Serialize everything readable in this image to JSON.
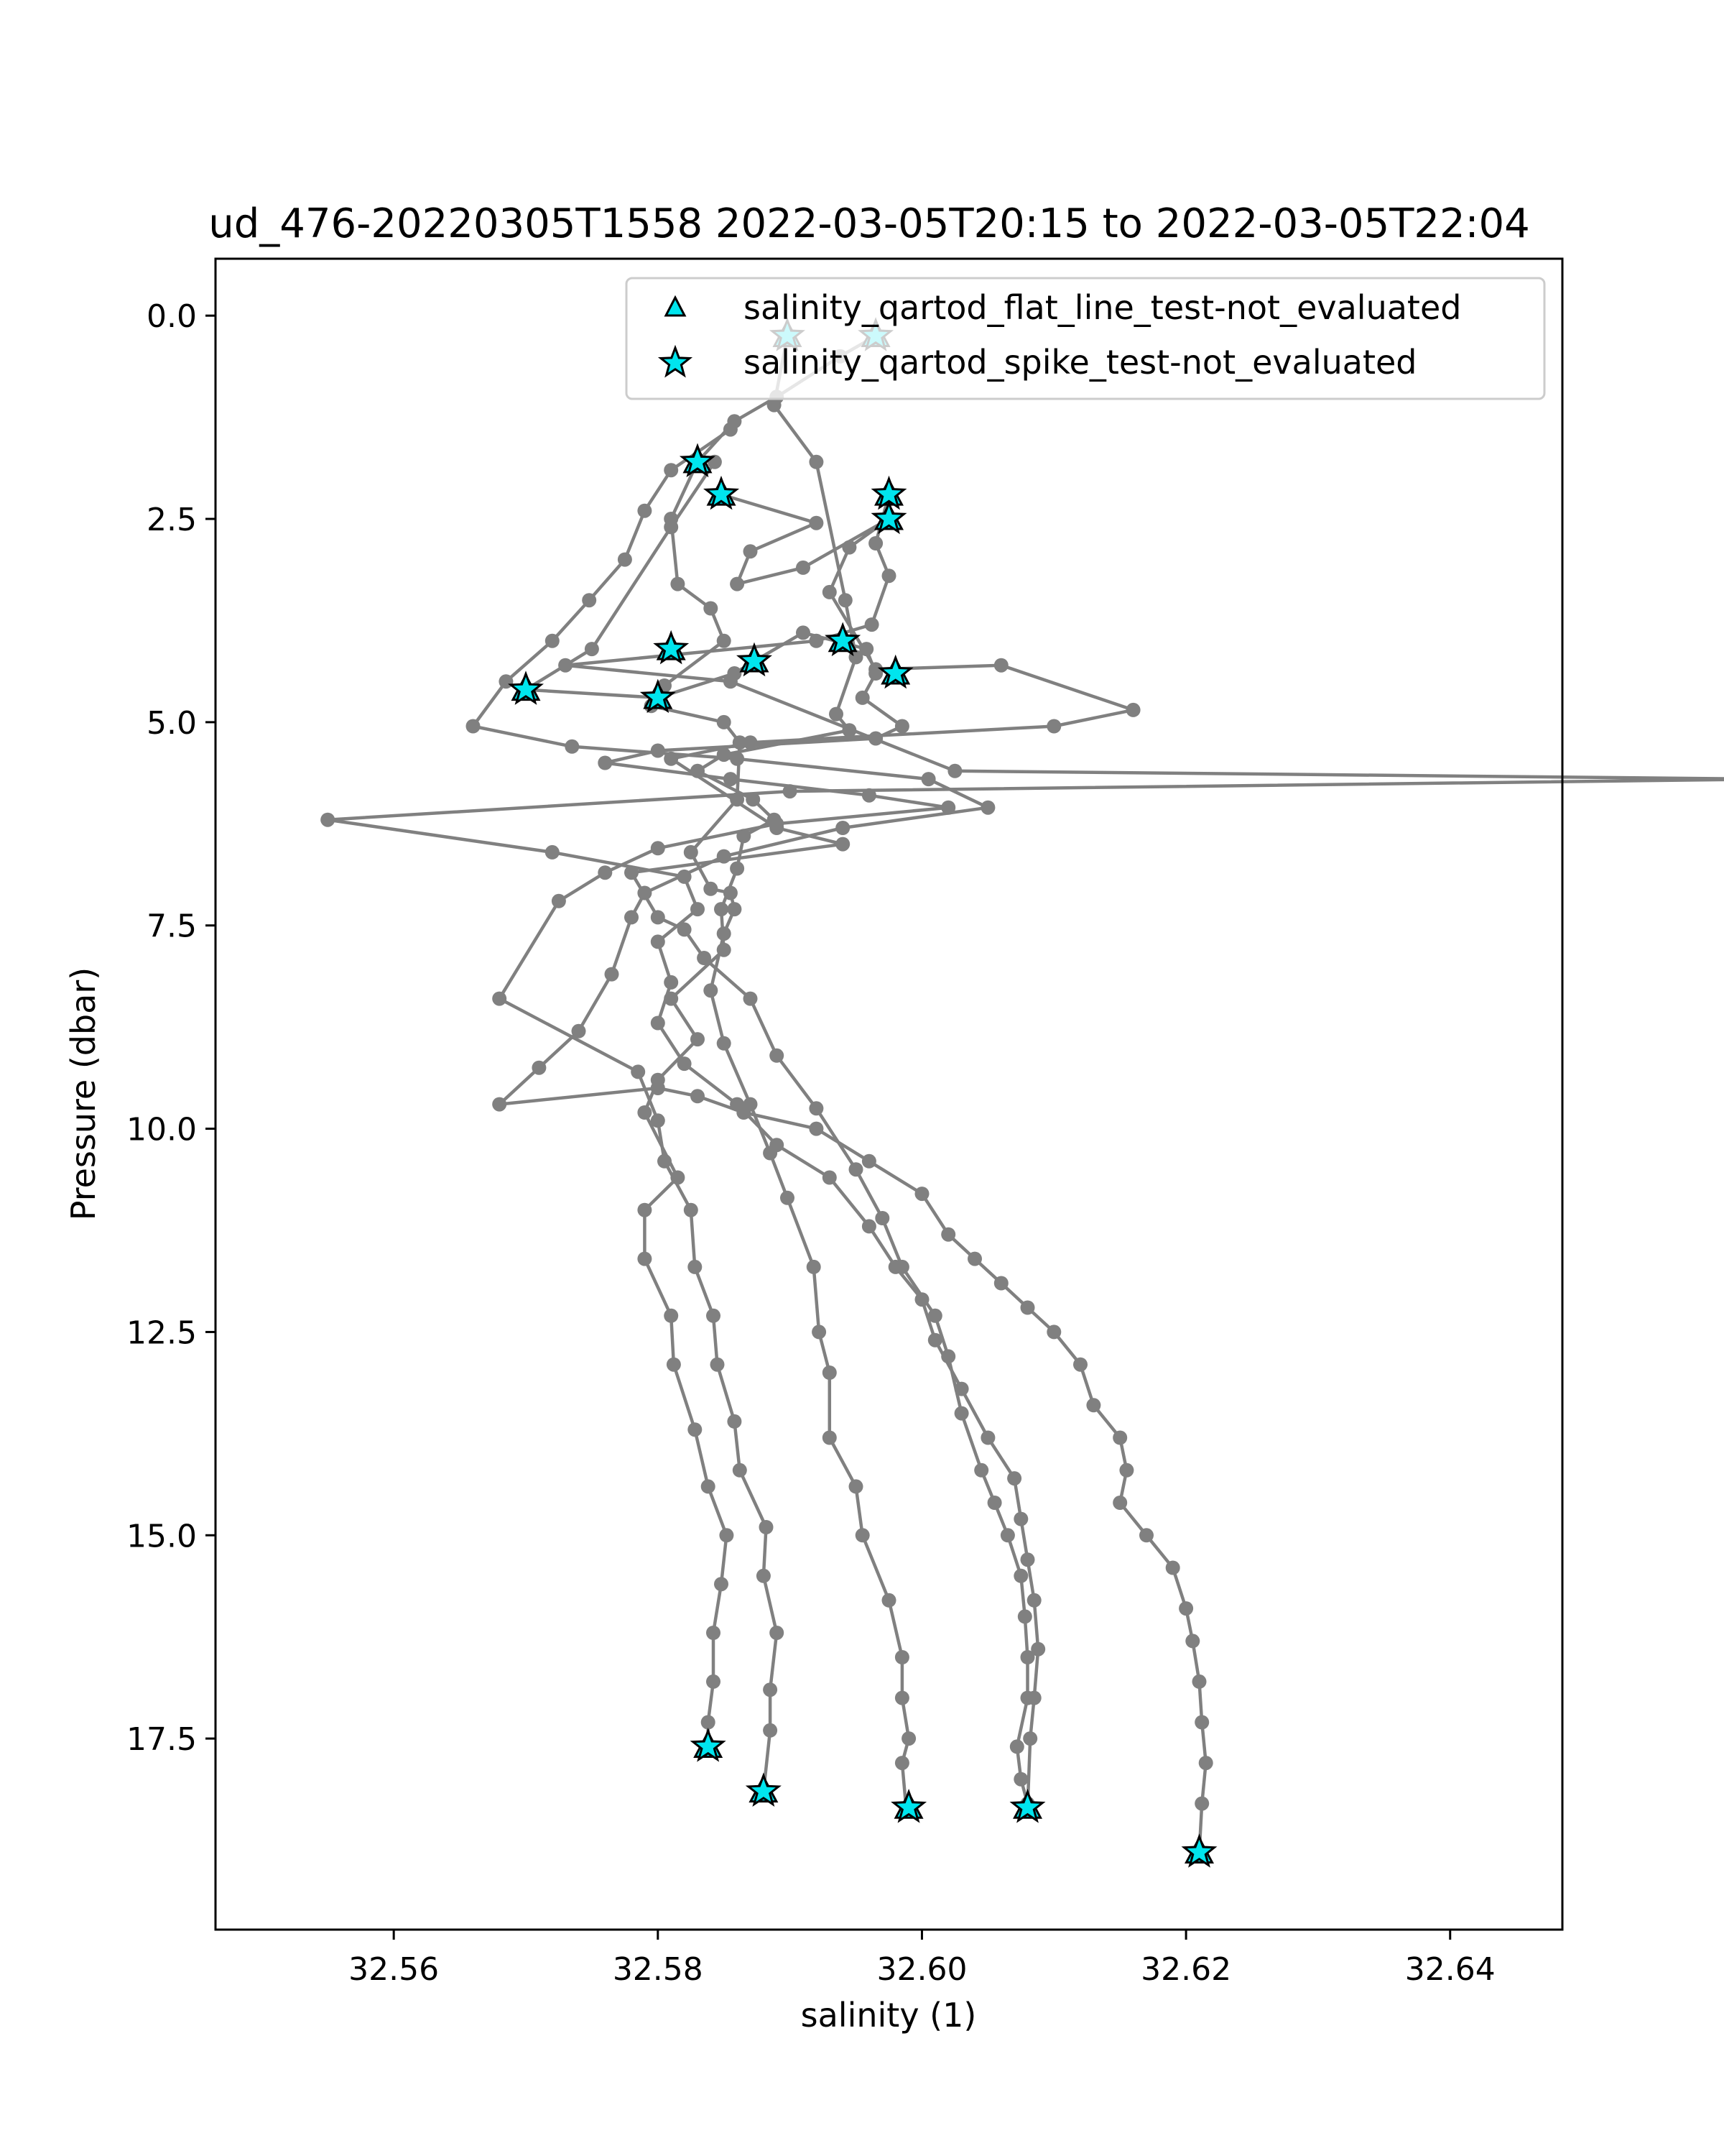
{
  "chart_data": {
    "type": "line",
    "title": "ud_476-20220305T1558 2022-03-05T20:15 to 2022-03-05T22:04",
    "xlabel": "salinity (1)",
    "ylabel": "Pressure (dbar)",
    "xlim": [
      32.5465,
      32.6485
    ],
    "ylim": [
      19.85,
      -0.7
    ],
    "y_inverted": true,
    "grid": false,
    "legend_placement": "top-right",
    "x_ticks": [
      "32.56",
      "32.58",
      "32.60",
      "32.62",
      "32.64"
    ],
    "x_tick_values": [
      32.56,
      32.58,
      32.6,
      32.62,
      32.64
    ],
    "y_ticks": [
      "0.0",
      "2.5",
      "5.0",
      "7.5",
      "10.0",
      "12.5",
      "15.0",
      "17.5"
    ],
    "y_tick_values": [
      0.0,
      2.5,
      5.0,
      7.5,
      10.0,
      12.5,
      15.0,
      17.5
    ],
    "line_color": "#808080",
    "marker_color": "#00e5ee",
    "legend": [
      {
        "label": "salinity_qartod_flat_line_test-not_evaluated",
        "marker": "triangle"
      },
      {
        "label": "salinity_qartod_spike_test-not_evaluated",
        "marker": "star"
      }
    ],
    "series": [
      {
        "profile": 1,
        "points": [
          [
            32.5898,
            0.25
          ],
          [
            32.5888,
            1.1
          ],
          [
            32.592,
            1.8
          ],
          [
            32.5942,
            3.5
          ],
          [
            32.595,
            4.2
          ],
          [
            32.5935,
            4.9
          ],
          [
            32.5945,
            5.1
          ],
          [
            32.585,
            5.4
          ],
          [
            32.583,
            5.6
          ],
          [
            32.5872,
            5.95
          ],
          [
            32.5888,
            6.2
          ],
          [
            32.5865,
            6.4
          ],
          [
            32.586,
            6.8
          ],
          [
            32.5848,
            7.3
          ],
          [
            32.585,
            7.8
          ],
          [
            32.581,
            8.4
          ],
          [
            32.583,
            8.9
          ],
          [
            32.58,
            9.4
          ],
          [
            32.579,
            9.8
          ],
          [
            32.5815,
            10.6
          ],
          [
            32.579,
            11.0
          ],
          [
            32.579,
            11.6
          ],
          [
            32.581,
            12.3
          ],
          [
            32.5812,
            12.9
          ],
          [
            32.5828,
            13.7
          ],
          [
            32.5838,
            14.4
          ],
          [
            32.5852,
            15.0
          ],
          [
            32.5848,
            15.6
          ],
          [
            32.5842,
            16.2
          ],
          [
            32.5842,
            16.8
          ],
          [
            32.5838,
            17.3
          ],
          [
            32.5838,
            17.6
          ]
        ]
      },
      {
        "profile": 2,
        "points": [
          [
            32.5965,
            0.25
          ],
          [
            32.5938,
            0.5
          ],
          [
            32.589,
            1.0
          ],
          [
            32.5858,
            1.3
          ],
          [
            32.583,
            1.8
          ],
          [
            32.581,
            2.5
          ],
          [
            32.5815,
            3.3
          ],
          [
            32.584,
            3.6
          ],
          [
            32.585,
            4.0
          ],
          [
            32.5805,
            4.55
          ],
          [
            32.5795,
            4.8
          ],
          [
            32.585,
            5.0
          ],
          [
            32.5862,
            5.25
          ],
          [
            32.586,
            5.95
          ],
          [
            32.5825,
            6.6
          ],
          [
            32.584,
            7.05
          ],
          [
            32.5855,
            7.1
          ],
          [
            32.5858,
            7.3
          ],
          [
            32.585,
            7.6
          ],
          [
            32.584,
            8.3
          ],
          [
            32.585,
            8.95
          ],
          [
            32.587,
            9.7
          ],
          [
            32.5885,
            10.3
          ],
          [
            32.5898,
            10.85
          ],
          [
            32.5918,
            11.7
          ],
          [
            32.5922,
            12.5
          ],
          [
            32.593,
            13.0
          ],
          [
            32.593,
            13.8
          ],
          [
            32.595,
            14.4
          ],
          [
            32.5955,
            15.0
          ],
          [
            32.5975,
            15.8
          ],
          [
            32.5985,
            16.5
          ],
          [
            32.5985,
            17.0
          ],
          [
            32.599,
            17.5
          ],
          [
            32.5985,
            17.8
          ],
          [
            32.5988,
            18.35
          ]
        ]
      },
      {
        "profile": 3,
        "points": [
          [
            32.5843,
            1.8
          ],
          [
            32.581,
            2.6
          ],
          [
            32.575,
            4.1
          ],
          [
            32.57,
            4.6
          ],
          [
            32.58,
            4.7
          ],
          [
            32.5858,
            4.4
          ],
          [
            32.5873,
            4.25
          ],
          [
            32.591,
            3.9
          ],
          [
            32.5958,
            4.1
          ],
          [
            32.5965,
            4.4
          ],
          [
            32.5955,
            4.7
          ],
          [
            32.5985,
            5.05
          ],
          [
            32.5965,
            5.2
          ],
          [
            32.58,
            5.35
          ],
          [
            32.576,
            5.5
          ],
          [
            32.5855,
            5.7
          ],
          [
            32.596,
            5.9
          ],
          [
            32.602,
            6.05
          ],
          [
            32.589,
            6.25
          ],
          [
            32.58,
            6.55
          ],
          [
            32.576,
            6.85
          ],
          [
            32.5725,
            7.2
          ],
          [
            32.568,
            8.4
          ],
          [
            32.5785,
            9.3
          ],
          [
            32.58,
            9.9
          ],
          [
            32.5805,
            10.4
          ],
          [
            32.5825,
            11.0
          ],
          [
            32.5828,
            11.7
          ],
          [
            32.5842,
            12.3
          ],
          [
            32.5845,
            12.9
          ],
          [
            32.5858,
            13.6
          ],
          [
            32.5862,
            14.2
          ],
          [
            32.5882,
            14.9
          ],
          [
            32.588,
            15.5
          ],
          [
            32.589,
            16.2
          ],
          [
            32.5885,
            16.9
          ],
          [
            32.5885,
            17.4
          ],
          [
            32.588,
            18.15
          ]
        ]
      },
      {
        "profile": 4,
        "points": [
          [
            32.5848,
            2.2
          ],
          [
            32.592,
            2.55
          ],
          [
            32.587,
            2.9
          ],
          [
            32.586,
            3.3
          ],
          [
            32.591,
            3.1
          ],
          [
            32.5975,
            2.5
          ],
          [
            32.5945,
            2.85
          ],
          [
            32.593,
            3.4
          ],
          [
            32.5965,
            4.35
          ],
          [
            32.606,
            4.3
          ],
          [
            32.616,
            4.85
          ],
          [
            32.61,
            5.05
          ],
          [
            32.587,
            5.25
          ],
          [
            32.581,
            5.45
          ],
          [
            32.589,
            6.3
          ],
          [
            32.594,
            6.5
          ],
          [
            32.578,
            6.85
          ],
          [
            32.58,
            7.4
          ],
          [
            32.582,
            7.55
          ],
          [
            32.5835,
            7.9
          ],
          [
            32.587,
            8.4
          ],
          [
            32.589,
            9.1
          ],
          [
            32.592,
            9.75
          ],
          [
            32.595,
            10.5
          ],
          [
            32.597,
            11.1
          ],
          [
            32.5985,
            11.7
          ],
          [
            32.601,
            12.3
          ],
          [
            32.602,
            12.8
          ],
          [
            32.603,
            13.5
          ],
          [
            32.6045,
            14.2
          ],
          [
            32.6055,
            14.6
          ],
          [
            32.6065,
            15.0
          ],
          [
            32.6075,
            15.5
          ],
          [
            32.6078,
            16.0
          ],
          [
            32.608,
            16.5
          ],
          [
            32.608,
            17.0
          ],
          [
            32.6072,
            17.6
          ],
          [
            32.6075,
            18.0
          ],
          [
            32.608,
            18.3
          ]
        ]
      },
      {
        "profile": 5,
        "points": [
          [
            32.5975,
            2.2
          ],
          [
            32.5965,
            2.8
          ],
          [
            32.5975,
            3.2
          ],
          [
            32.5962,
            3.8
          ],
          [
            32.592,
            4.0
          ],
          [
            32.573,
            4.3
          ],
          [
            32.5855,
            4.5
          ],
          [
            32.6025,
            5.6
          ],
          [
            32.664,
            5.7
          ],
          [
            32.59,
            5.85
          ],
          [
            32.555,
            6.2
          ],
          [
            32.572,
            6.6
          ],
          [
            32.582,
            6.9
          ],
          [
            32.583,
            7.3
          ],
          [
            32.58,
            7.7
          ],
          [
            32.581,
            8.2
          ],
          [
            32.58,
            8.7
          ],
          [
            32.582,
            9.2
          ],
          [
            32.586,
            9.7
          ],
          [
            32.589,
            10.2
          ],
          [
            32.593,
            10.6
          ],
          [
            32.596,
            11.2
          ],
          [
            32.598,
            11.7
          ],
          [
            32.6,
            12.1
          ],
          [
            32.601,
            12.6
          ],
          [
            32.603,
            13.2
          ],
          [
            32.605,
            13.8
          ],
          [
            32.607,
            14.3
          ],
          [
            32.6075,
            14.8
          ],
          [
            32.608,
            15.3
          ],
          [
            32.6085,
            15.8
          ],
          [
            32.6088,
            16.4
          ],
          [
            32.6085,
            17.0
          ],
          [
            32.6082,
            17.5
          ],
          [
            32.608,
            18.35
          ]
        ]
      },
      {
        "profile": 6,
        "points": [
          [
            32.5855,
            1.4
          ],
          [
            32.581,
            1.9
          ],
          [
            32.579,
            2.4
          ],
          [
            32.5775,
            3.0
          ],
          [
            32.5748,
            3.5
          ],
          [
            32.572,
            4.0
          ],
          [
            32.5685,
            4.5
          ],
          [
            32.566,
            5.05
          ],
          [
            32.5735,
            5.3
          ],
          [
            32.586,
            5.45
          ],
          [
            32.6005,
            5.7
          ],
          [
            32.605,
            6.05
          ],
          [
            32.594,
            6.3
          ],
          [
            32.585,
            6.65
          ],
          [
            32.579,
            7.1
          ],
          [
            32.578,
            7.4
          ],
          [
            32.5765,
            8.1
          ],
          [
            32.574,
            8.8
          ],
          [
            32.571,
            9.25
          ],
          [
            32.568,
            9.7
          ],
          [
            32.58,
            9.5
          ],
          [
            32.583,
            9.6
          ],
          [
            32.5865,
            9.8
          ],
          [
            32.592,
            10.0
          ],
          [
            32.596,
            10.4
          ],
          [
            32.6,
            10.8
          ],
          [
            32.602,
            11.3
          ],
          [
            32.604,
            11.6
          ],
          [
            32.606,
            11.9
          ],
          [
            32.608,
            12.2
          ],
          [
            32.61,
            12.5
          ],
          [
            32.612,
            12.9
          ],
          [
            32.613,
            13.4
          ],
          [
            32.615,
            13.8
          ],
          [
            32.6155,
            14.2
          ],
          [
            32.615,
            14.6
          ],
          [
            32.617,
            15.0
          ],
          [
            32.619,
            15.4
          ],
          [
            32.62,
            15.9
          ],
          [
            32.6205,
            16.3
          ],
          [
            32.621,
            16.8
          ],
          [
            32.6212,
            17.3
          ],
          [
            32.6215,
            17.8
          ],
          [
            32.6212,
            18.3
          ],
          [
            32.621,
            18.9
          ]
        ]
      }
    ],
    "flagged_points": [
      [
        32.5898,
        0.25
      ],
      [
        32.5965,
        0.25
      ],
      [
        32.583,
        1.8
      ],
      [
        32.5848,
        2.2
      ],
      [
        32.5975,
        2.2
      ],
      [
        32.5975,
        2.5
      ],
      [
        32.581,
        4.1
      ],
      [
        32.5873,
        4.25
      ],
      [
        32.594,
        4.0
      ],
      [
        32.598,
        4.4
      ],
      [
        32.57,
        4.6
      ],
      [
        32.58,
        4.7
      ],
      [
        32.5838,
        17.6
      ],
      [
        32.588,
        18.15
      ],
      [
        32.599,
        18.35
      ],
      [
        32.608,
        18.35
      ],
      [
        32.621,
        18.9
      ]
    ]
  }
}
